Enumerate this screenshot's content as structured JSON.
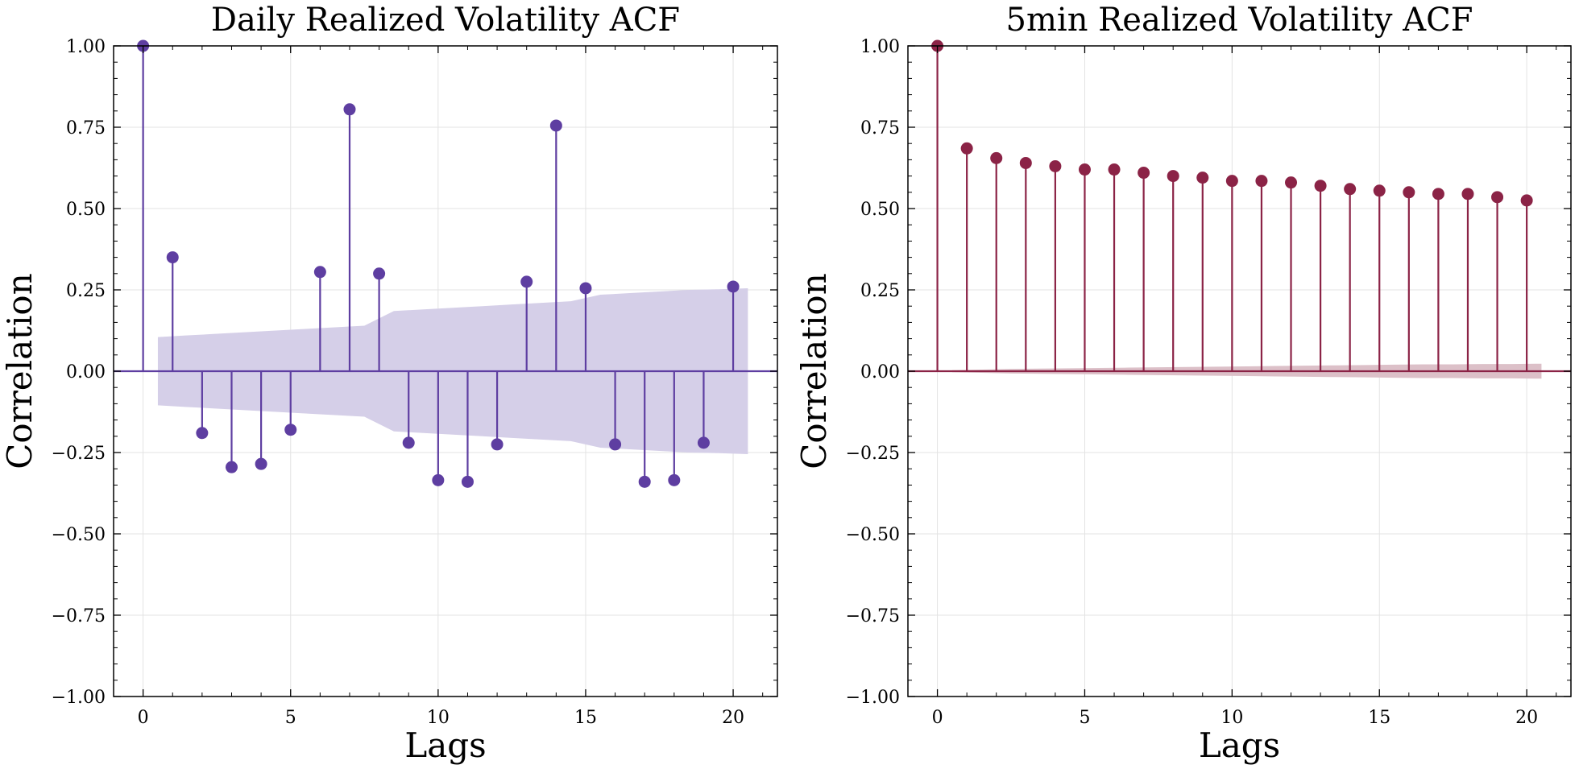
{
  "chart_data": [
    {
      "type": "stem",
      "title": "Daily Realized Volatility ACF",
      "xlabel": "Lags",
      "ylabel": "Correlation",
      "xlim": [
        -1,
        21.5
      ],
      "ylim": [
        -1.0,
        1.0
      ],
      "xticks": [
        "0",
        "5",
        "10",
        "15",
        "20"
      ],
      "yticks": [
        "1.00",
        "0.75",
        "0.50",
        "0.25",
        "0.00",
        "−0.25",
        "−0.50",
        "−0.75",
        "−1.00"
      ],
      "grid": true,
      "color": "#5e3ea1",
      "band_color": "#d5cfe8",
      "x": [
        0,
        1,
        2,
        3,
        4,
        5,
        6,
        7,
        8,
        9,
        10,
        11,
        12,
        13,
        14,
        15,
        16,
        17,
        18,
        19,
        20
      ],
      "values": [
        1.0,
        0.35,
        -0.19,
        -0.295,
        -0.285,
        -0.18,
        0.305,
        0.805,
        0.3,
        -0.22,
        -0.335,
        -0.34,
        -0.225,
        0.275,
        0.755,
        0.255,
        -0.225,
        -0.34,
        -0.335,
        -0.22,
        0.26
      ],
      "confidence_band": {
        "x": [
          0.5,
          1.5,
          2.5,
          3.5,
          4.5,
          5.5,
          6.5,
          7.5,
          8.5,
          9.5,
          10.5,
          11.5,
          12.5,
          13.5,
          14.5,
          15.5,
          16.5,
          17.5,
          18.5,
          19.5,
          20.5
        ],
        "upper": [
          0.105,
          0.11,
          0.115,
          0.12,
          0.125,
          0.13,
          0.135,
          0.14,
          0.185,
          0.19,
          0.195,
          0.2,
          0.205,
          0.21,
          0.215,
          0.235,
          0.24,
          0.245,
          0.25,
          0.252,
          0.255
        ]
      }
    },
    {
      "type": "stem",
      "title": "5min Realized Volatility ACF",
      "xlabel": "Lags",
      "ylabel": "Correlation",
      "xlim": [
        -1,
        21.5
      ],
      "ylim": [
        -1.0,
        1.0
      ],
      "xticks": [
        "0",
        "5",
        "10",
        "15",
        "20"
      ],
      "yticks": [
        "1.00",
        "0.75",
        "0.50",
        "0.25",
        "0.00",
        "−0.25",
        "−0.50",
        "−0.75",
        "−1.00"
      ],
      "grid": true,
      "color": "#8b2346",
      "band_color": "#dcc0c8",
      "x": [
        0,
        1,
        2,
        3,
        4,
        5,
        6,
        7,
        8,
        9,
        10,
        11,
        12,
        13,
        14,
        15,
        16,
        17,
        18,
        19,
        20
      ],
      "values": [
        1.0,
        0.685,
        0.655,
        0.64,
        0.63,
        0.62,
        0.62,
        0.61,
        0.6,
        0.595,
        0.585,
        0.585,
        0.58,
        0.57,
        0.56,
        0.555,
        0.55,
        0.545,
        0.545,
        0.535,
        0.525
      ],
      "confidence_band": {
        "x": [
          0.5,
          1.5,
          2.5,
          3.5,
          4.5,
          5.5,
          6.5,
          7.5,
          8.5,
          9.5,
          10.5,
          11.5,
          12.5,
          13.5,
          14.5,
          15.5,
          16.5,
          17.5,
          18.5,
          19.5,
          20.5
        ],
        "upper": [
          0.003,
          0.005,
          0.007,
          0.008,
          0.009,
          0.01,
          0.011,
          0.012,
          0.013,
          0.014,
          0.015,
          0.016,
          0.017,
          0.018,
          0.019,
          0.02,
          0.021,
          0.021,
          0.022,
          0.022,
          0.023
        ]
      }
    }
  ]
}
